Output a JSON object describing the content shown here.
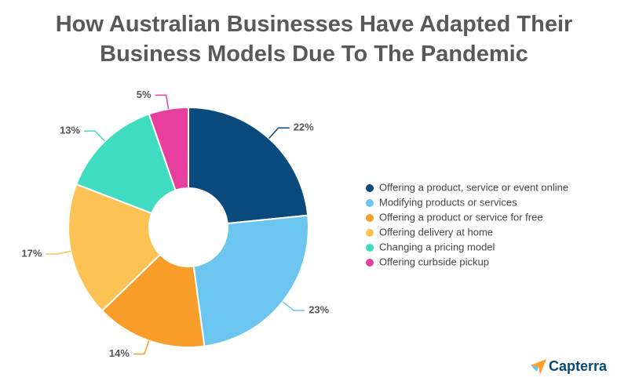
{
  "chart_data": {
    "type": "pie",
    "title": "How Australian Businesses Have Adapted Their Business Models Due To The Pandemic",
    "categories": [
      "Offering a product, service or event online",
      "Modifying products or services",
      "Offering a product or service for free",
      "Offering delivery at home",
      "Changing a pricing model",
      "Offering curbside pickup"
    ],
    "values": [
      22,
      23,
      14,
      17,
      13,
      5
    ],
    "value_labels": [
      "22%",
      "23%",
      "14%",
      "17%",
      "13%",
      "5%"
    ],
    "colors": [
      "#0b4a7d",
      "#6cc5ee",
      "#f99d2a",
      "#fcc254",
      "#3fdcc2",
      "#e83e9d"
    ],
    "legend": "right",
    "brand": "Capterra"
  }
}
